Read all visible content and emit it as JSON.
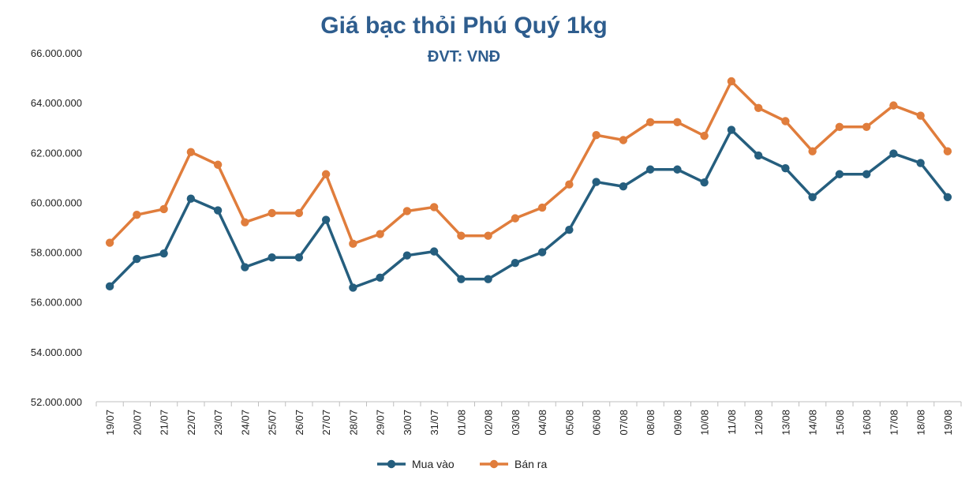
{
  "chart_data": {
    "type": "line",
    "title": "Giá bạc thỏi Phú Quý 1kg",
    "subtitle": "ĐVT: VNĐ",
    "categories": [
      "19/07",
      "20/07",
      "21/07",
      "22/07",
      "23/07",
      "24/07",
      "25/07",
      "26/07",
      "27/07",
      "28/07",
      "29/07",
      "30/07",
      "31/07",
      "01/08",
      "02/08",
      "03/08",
      "04/08",
      "05/08",
      "06/08",
      "07/08",
      "08/08",
      "09/08",
      "10/08",
      "11/08",
      "12/08",
      "13/08",
      "14/08",
      "15/08",
      "16/08",
      "17/08",
      "18/08",
      "19/08"
    ],
    "series": [
      {
        "name": "Mua vào",
        "color": "#255e7e",
        "values": [
          56630000,
          57730000,
          57950000,
          60150000,
          59680000,
          57400000,
          57790000,
          57790000,
          59300000,
          56580000,
          56980000,
          57870000,
          58030000,
          56920000,
          56920000,
          57570000,
          58000000,
          58900000,
          60820000,
          60640000,
          61320000,
          61320000,
          60800000,
          62910000,
          61880000,
          61370000,
          60210000,
          61130000,
          61130000,
          61960000,
          61580000,
          60210000
        ]
      },
      {
        "name": "Bán ra",
        "color": "#e07d3c",
        "values": [
          58380000,
          59500000,
          59730000,
          62020000,
          61510000,
          59200000,
          59570000,
          59570000,
          61130000,
          58340000,
          58730000,
          59650000,
          59810000,
          58660000,
          58660000,
          59360000,
          59790000,
          60720000,
          62700000,
          62500000,
          63220000,
          63220000,
          62670000,
          64860000,
          63790000,
          63260000,
          62050000,
          63030000,
          63030000,
          63890000,
          63480000,
          62050000
        ]
      }
    ],
    "yticks": [
      "52.000.000",
      "54.000.000",
      "56.000.000",
      "58.000.000",
      "60.000.000",
      "62.000.000",
      "64.000.000",
      "66.000.000"
    ],
    "ylim": [
      52000000,
      66000000
    ],
    "grid": false,
    "legend": "bottom"
  }
}
